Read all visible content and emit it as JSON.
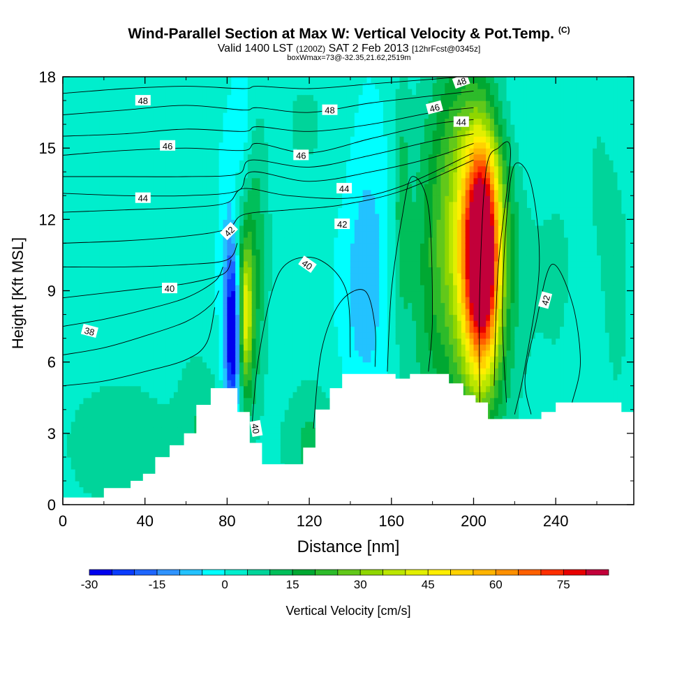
{
  "header": {
    "title": "Wind-Parallel Section at Max W: Vertical Velocity & Pot.Temp.",
    "copyright": "(C)",
    "valid_prefix": "Valid 1400 LST",
    "valid_utc": "(1200Z)",
    "valid_date": "SAT 2 Feb 2013",
    "forecast": "[12hrFcst@0345z]",
    "box_info": "boxWmax=73@-32.35,21.62,2519m"
  },
  "colorbar": {
    "label": "Vertical Velocity [cm/s]",
    "levels": [
      -30,
      -25,
      -20,
      -15,
      -10,
      -5,
      0,
      5,
      10,
      15,
      20,
      25,
      30,
      35,
      40,
      45,
      50,
      55,
      60,
      65,
      70,
      75,
      80,
      85
    ],
    "colors": [
      "#0000ee",
      "#0a3cff",
      "#1e66ff",
      "#2f93ff",
      "#23c2ff",
      "#00ffff",
      "#00eecd",
      "#00d49a",
      "#00bf5a",
      "#00a832",
      "#2dbb2a",
      "#62c81a",
      "#8fd600",
      "#bbe600",
      "#e2ef00",
      "#ffee00",
      "#ffd200",
      "#ffb400",
      "#ff9000",
      "#ff6000",
      "#ff2e00",
      "#e80000",
      "#c2003a"
    ],
    "tick_labels": [
      "-30",
      "-15",
      "0",
      "15",
      "30",
      "45",
      "60",
      "75"
    ],
    "tick_values": [
      -30,
      -15,
      0,
      15,
      30,
      45,
      60,
      75
    ]
  },
  "chart_data": {
    "type": "heatmap",
    "title": "Wind-Parallel Section at Max W: Vertical Velocity & Pot.Temp.",
    "xlabel": "Distance [nm]",
    "ylabel": "Height [Kft MSL]",
    "xlim": [
      0,
      278
    ],
    "ylim": [
      0,
      18
    ],
    "x_ticks": [
      0,
      40,
      80,
      120,
      160,
      200,
      240
    ],
    "y_ticks": [
      0,
      3,
      6,
      9,
      12,
      15,
      18
    ],
    "background_w": 1,
    "w_features": [
      {
        "x": 204,
        "z": 10.5,
        "sx": 6,
        "sz": 3.3,
        "w": 82
      },
      {
        "x": 202,
        "z": 11,
        "sx": 13,
        "sz": 5.5,
        "w": 28
      },
      {
        "x": 190,
        "z": 12,
        "sx": 9,
        "sz": 5,
        "w": 14
      },
      {
        "x": 176,
        "z": 9,
        "sx": 7,
        "sz": 5,
        "w": 8
      },
      {
        "x": 89,
        "z": 8,
        "sx": 2.2,
        "sz": 2,
        "w": 28
      },
      {
        "x": 90,
        "z": 8.5,
        "sx": 5,
        "sz": 4,
        "w": 12
      },
      {
        "x": 93,
        "z": 11,
        "sx": 6,
        "sz": 4,
        "w": 8
      },
      {
        "x": 83,
        "z": 7.2,
        "sx": 2.3,
        "sz": 2.3,
        "w": -32
      },
      {
        "x": 81,
        "z": 8.5,
        "sx": 3,
        "sz": 4,
        "w": -12
      },
      {
        "x": 88,
        "z": 15.5,
        "sx": 3,
        "sz": 3,
        "w": -8
      },
      {
        "x": 150,
        "z": 10,
        "sx": 6,
        "sz": 4,
        "w": -7
      },
      {
        "x": 143,
        "z": 9,
        "sx": 6,
        "sz": 3,
        "w": -5
      },
      {
        "x": 208,
        "z": 17,
        "sx": 10,
        "sz": 1.5,
        "w": -6
      },
      {
        "x": 228,
        "z": 15,
        "sx": 12,
        "sz": 2,
        "w": -3
      },
      {
        "x": 28,
        "z": 2.5,
        "sx": 20,
        "sz": 2,
        "w": 9
      },
      {
        "x": 68,
        "z": 3.5,
        "sx": 8,
        "sz": 2,
        "w": 8
      },
      {
        "x": 120,
        "z": 2.5,
        "sx": 10,
        "sz": 2,
        "w": 10
      },
      {
        "x": 165,
        "z": 12.5,
        "sx": 3,
        "sz": 4,
        "w": 10
      },
      {
        "x": 240,
        "z": 10,
        "sx": 8,
        "sz": 4,
        "w": 5
      },
      {
        "x": 60,
        "z": 14,
        "sx": 5,
        "sz": 5,
        "w": 4
      },
      {
        "x": 260,
        "z": 14,
        "sx": 6,
        "sz": 4,
        "w": 4
      },
      {
        "x": 118,
        "z": 16,
        "sx": 10,
        "sz": 2,
        "w": 5
      },
      {
        "x": 270,
        "z": 9,
        "sx": 5,
        "sz": 4,
        "w": 6
      }
    ],
    "terrain": [
      [
        0,
        0.3
      ],
      [
        20,
        0.3
      ],
      [
        20,
        0.7
      ],
      [
        33,
        0.7
      ],
      [
        33,
        1.0
      ],
      [
        39,
        1.0
      ],
      [
        39,
        1.3
      ],
      [
        45,
        1.3
      ],
      [
        45,
        2.0
      ],
      [
        52,
        2.0
      ],
      [
        52,
        2.5
      ],
      [
        59,
        2.5
      ],
      [
        59,
        3.0
      ],
      [
        65,
        3.0
      ],
      [
        65,
        3.5
      ],
      [
        65,
        4.2
      ],
      [
        72,
        4.2
      ],
      [
        72,
        4.9
      ],
      [
        85,
        4.9
      ],
      [
        85,
        3.9
      ],
      [
        91,
        3.9
      ],
      [
        91,
        2.6
      ],
      [
        97,
        2.6
      ],
      [
        97,
        1.7
      ],
      [
        117,
        1.7
      ],
      [
        117,
        2.4
      ],
      [
        123,
        2.4
      ],
      [
        123,
        4.0
      ],
      [
        130,
        4.0
      ],
      [
        130,
        4.9
      ],
      [
        136,
        4.9
      ],
      [
        136,
        5.5
      ],
      [
        162,
        5.5
      ],
      [
        162,
        5.3
      ],
      [
        169,
        5.3
      ],
      [
        169,
        5.5
      ],
      [
        188,
        5.5
      ],
      [
        188,
        5.1
      ],
      [
        195,
        5.1
      ],
      [
        195,
        4.6
      ],
      [
        201,
        4.6
      ],
      [
        201,
        4.3
      ],
      [
        207,
        4.3
      ],
      [
        207,
        3.6
      ],
      [
        233,
        3.6
      ],
      [
        233,
        3.9
      ],
      [
        240,
        3.9
      ],
      [
        240,
        4.3
      ],
      [
        272,
        4.3
      ],
      [
        272,
        3.9
      ],
      [
        278,
        3.9
      ]
    ],
    "theta_contours": [
      {
        "value": 38,
        "points": [
          [
            0,
            5.0
          ],
          [
            20,
            5.2
          ],
          [
            40,
            5.6
          ],
          [
            60,
            6.1
          ],
          [
            70,
            6.8
          ],
          [
            74,
            8.3
          ]
        ]
      },
      {
        "value": 38,
        "points": [
          [
            0,
            6.3
          ],
          [
            20,
            6.6
          ],
          [
            40,
            7.1
          ],
          [
            60,
            7.7
          ],
          [
            72,
            8.4
          ],
          [
            76,
            9.0
          ]
        ]
      },
      {
        "value": 38,
        "points": [
          [
            0,
            7.5
          ],
          [
            20,
            7.8
          ],
          [
            40,
            8.2
          ],
          [
            60,
            8.7
          ],
          [
            74,
            9.4
          ],
          [
            78,
            10.0
          ]
        ]
      },
      {
        "value": 40,
        "points": [
          [
            0,
            8.7
          ],
          [
            20,
            8.9
          ],
          [
            40,
            9.1
          ],
          [
            60,
            9.3
          ],
          [
            78,
            9.7
          ],
          [
            82,
            10.3
          ]
        ]
      },
      {
        "value": 40,
        "points": [
          [
            0,
            10.0
          ],
          [
            30,
            10.0
          ],
          [
            60,
            10.1
          ],
          [
            80,
            10.3
          ],
          [
            85,
            11.0
          ]
        ]
      },
      {
        "value": 42,
        "points": [
          [
            0,
            11.0
          ],
          [
            30,
            11.1
          ],
          [
            60,
            11.3
          ],
          [
            80,
            11.6
          ],
          [
            88,
            12.2
          ],
          [
            110,
            12.4
          ],
          [
            135,
            12.6
          ],
          [
            165,
            13.2
          ],
          [
            200,
            14.5
          ]
        ]
      },
      {
        "value": 42,
        "points": [
          [
            0,
            12.3
          ],
          [
            30,
            12.4
          ],
          [
            60,
            12.5
          ],
          [
            80,
            12.7
          ],
          [
            88,
            13.3
          ],
          [
            110,
            13.0
          ],
          [
            140,
            12.9
          ],
          [
            165,
            13.4
          ],
          [
            200,
            14.8
          ]
        ]
      },
      {
        "value": 44,
        "points": [
          [
            0,
            13.1
          ],
          [
            30,
            13.0
          ],
          [
            60,
            13.0
          ],
          [
            85,
            13.2
          ],
          [
            92,
            14.0
          ],
          [
            120,
            13.6
          ],
          [
            150,
            14.0
          ],
          [
            180,
            14.6
          ],
          [
            200,
            15.2
          ]
        ]
      },
      {
        "value": 44,
        "points": [
          [
            0,
            13.8
          ],
          [
            30,
            13.8
          ],
          [
            60,
            13.8
          ],
          [
            85,
            13.9
          ],
          [
            92,
            14.5
          ],
          [
            120,
            14.2
          ],
          [
            150,
            14.7
          ],
          [
            180,
            15.3
          ],
          [
            200,
            15.6
          ]
        ]
      },
      {
        "value": 46,
        "points": [
          [
            0,
            14.7
          ],
          [
            30,
            14.9
          ],
          [
            60,
            15.0
          ],
          [
            88,
            14.9
          ],
          [
            95,
            15.2
          ],
          [
            120,
            14.8
          ],
          [
            150,
            15.4
          ],
          [
            180,
            16.0
          ],
          [
            200,
            16.2
          ]
        ]
      },
      {
        "value": 46,
        "points": [
          [
            0,
            15.5
          ],
          [
            30,
            15.6
          ],
          [
            60,
            15.8
          ],
          [
            88,
            15.7
          ],
          [
            95,
            15.9
          ],
          [
            120,
            15.7
          ],
          [
            150,
            16.0
          ],
          [
            180,
            16.5
          ],
          [
            200,
            16.7
          ]
        ]
      },
      {
        "value": 48,
        "points": [
          [
            0,
            16.4
          ],
          [
            30,
            16.6
          ],
          [
            60,
            16.8
          ],
          [
            88,
            16.6
          ],
          [
            95,
            16.7
          ],
          [
            120,
            16.5
          ],
          [
            150,
            16.9
          ],
          [
            180,
            17.2
          ],
          [
            200,
            17.4
          ]
        ]
      },
      {
        "value": 48,
        "points": [
          [
            0,
            17.3
          ],
          [
            30,
            17.5
          ],
          [
            60,
            17.6
          ],
          [
            88,
            17.5
          ],
          [
            95,
            17.6
          ],
          [
            120,
            17.5
          ],
          [
            150,
            17.7
          ],
          [
            180,
            17.9
          ],
          [
            195,
            18.0
          ]
        ]
      },
      {
        "value": 40,
        "points": [
          [
            92,
            3.2
          ],
          [
            95,
            6.0
          ],
          [
            102,
            9.0
          ],
          [
            110,
            10.2
          ],
          [
            125,
            10.3
          ],
          [
            138,
            9.0
          ],
          [
            140,
            6.2
          ]
        ]
      },
      {
        "value": 42,
        "points": [
          [
            122,
            3.2
          ],
          [
            126,
            6.5
          ],
          [
            135,
            8.5
          ],
          [
            147,
            9.0
          ],
          [
            152,
            7.5
          ],
          [
            152,
            5.8
          ]
        ]
      },
      {
        "value": 42,
        "points": [
          [
            158,
            5.6
          ],
          [
            160,
            9.0
          ],
          [
            165,
            12.0
          ],
          [
            170,
            13.8
          ],
          [
            178,
            12.5
          ],
          [
            180,
            8.0
          ],
          [
            178,
            5.6
          ]
        ]
      },
      {
        "value": 42,
        "points": [
          [
            216,
            4.3
          ],
          [
            214,
            8.0
          ],
          [
            216,
            12.0
          ],
          [
            220,
            14.3
          ],
          [
            228,
            13.5
          ],
          [
            232,
            10.0
          ],
          [
            225,
            5.8
          ],
          [
            220,
            3.8
          ]
        ]
      },
      {
        "value": 42,
        "points": [
          [
            228,
            3.8
          ],
          [
            225,
            5.3
          ],
          [
            230,
            7.5
          ],
          [
            238,
            10.1
          ],
          [
            248,
            8.5
          ],
          [
            252,
            6.0
          ],
          [
            248,
            4.3
          ]
        ]
      },
      {
        "value": 44,
        "points": [
          [
            203,
            4.3
          ],
          [
            203,
            9.0
          ],
          [
            206,
            14.0
          ],
          [
            212,
            15.0
          ],
          [
            218,
            14.8
          ],
          [
            212,
            10.0
          ],
          [
            210,
            5.0
          ]
        ]
      }
    ],
    "contour_labels": [
      {
        "text": "48",
        "x": 39,
        "y": 17.0,
        "angle": 0
      },
      {
        "text": "46",
        "x": 51,
        "y": 15.1,
        "angle": 0
      },
      {
        "text": "44",
        "x": 39,
        "y": 12.9,
        "angle": 0
      },
      {
        "text": "42",
        "x": 81,
        "y": 11.5,
        "angle": -45
      },
      {
        "text": "40",
        "x": 52,
        "y": 9.1,
        "angle": 0
      },
      {
        "text": "38",
        "x": 13,
        "y": 7.3,
        "angle": 15
      },
      {
        "text": "48",
        "x": 130,
        "y": 16.6,
        "angle": 0
      },
      {
        "text": "46",
        "x": 116,
        "y": 14.7,
        "angle": 0
      },
      {
        "text": "44",
        "x": 137,
        "y": 13.3,
        "angle": 0
      },
      {
        "text": "42",
        "x": 136,
        "y": 11.8,
        "angle": 0
      },
      {
        "text": "40",
        "x": 119,
        "y": 10.1,
        "angle": 35
      },
      {
        "text": "40",
        "x": 94,
        "y": 3.2,
        "angle": 80
      },
      {
        "text": "48",
        "x": 194,
        "y": 17.8,
        "angle": -20
      },
      {
        "text": "46",
        "x": 181,
        "y": 16.7,
        "angle": -15
      },
      {
        "text": "44",
        "x": 194,
        "y": 16.1,
        "angle": 0
      },
      {
        "text": "42",
        "x": 235,
        "y": 8.6,
        "angle": -75
      }
    ]
  }
}
